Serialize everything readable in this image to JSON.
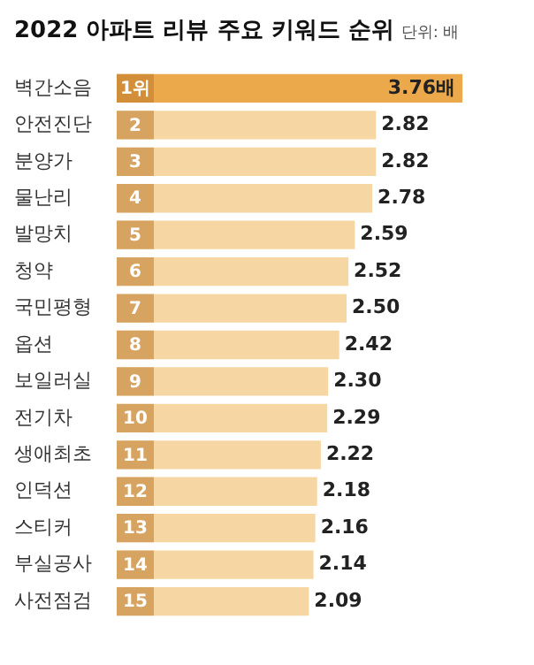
{
  "chart_data": {
    "type": "bar",
    "orientation": "horizontal",
    "title": "2022 아파트 리뷰 주요 키워드 순위",
    "subtitle": "단위: 배",
    "categories": [
      "벽간소음",
      "안전진단",
      "분양가",
      "물난리",
      "발망치",
      "청약",
      "국민평형",
      "옵션",
      "보일러실",
      "전기차",
      "생애최초",
      "인덕션",
      "스티커",
      "부실공사",
      "사전점검"
    ],
    "values": [
      3.76,
      2.82,
      2.82,
      2.78,
      2.59,
      2.52,
      2.5,
      2.42,
      2.3,
      2.29,
      2.22,
      2.18,
      2.16,
      2.14,
      2.09
    ],
    "colors": [
      "#eba94c",
      "#f6d7a4",
      "#f6d7a4",
      "#f6d7a4",
      "#f6d7a4",
      "#f6d7a4",
      "#f6d7a4",
      "#f6d7a4",
      "#f6d7a4",
      "#f6d7a4",
      "#f6d7a4",
      "#f6d7a4",
      "#f6d7a4",
      "#f6d7a4",
      "#f6d7a4"
    ],
    "value_labels": [
      "3.76배",
      "2.82",
      "2.82",
      "2.78",
      "2.59",
      "2.52",
      "2.50",
      "2.42",
      "2.30",
      "2.29",
      "2.22",
      "2.18",
      "2.16",
      "2.14",
      "2.09"
    ],
    "annotations": [
      {
        "text": "1위",
        "y": "벽간소음"
      },
      {
        "text": "2",
        "y": "안전진단"
      },
      {
        "text": "3",
        "y": "분양가"
      },
      {
        "text": "4",
        "y": "물난리"
      },
      {
        "text": "5",
        "y": "발망치"
      },
      {
        "text": "6",
        "y": "청약"
      },
      {
        "text": "7",
        "y": "국민평형"
      },
      {
        "text": "8",
        "y": "옵션"
      },
      {
        "text": "9",
        "y": "보일러실"
      },
      {
        "text": "10",
        "y": "전기차"
      },
      {
        "text": "11",
        "y": "생애최초"
      },
      {
        "text": "12",
        "y": "인덕션"
      },
      {
        "text": "13",
        "y": "스티커"
      },
      {
        "text": "14",
        "y": "부실공사"
      },
      {
        "text": "15",
        "y": "사전점검"
      }
    ],
    "legend": false,
    "tick_labels": "y"
  }
}
